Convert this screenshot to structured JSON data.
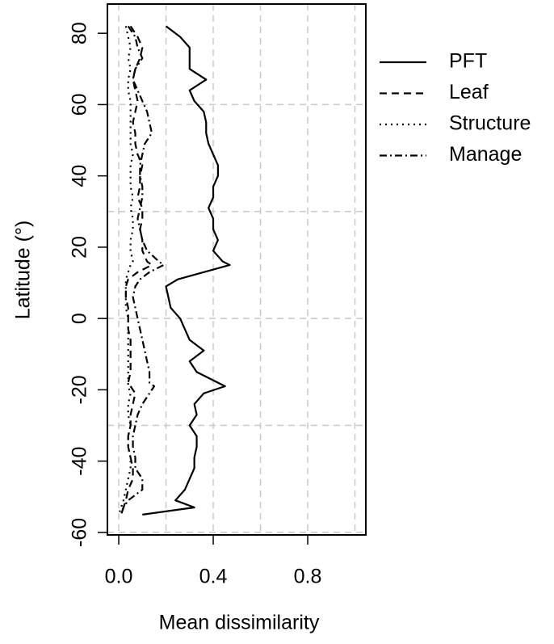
{
  "chart_data": {
    "type": "line",
    "orientation": "horizontal",
    "xlabel": "Mean dissimilarity",
    "ylabel": "Latitude (°)",
    "y": [
      82,
      79,
      76,
      73,
      70,
      67,
      64,
      61,
      58,
      55,
      52,
      49,
      46,
      43,
      40,
      37,
      34,
      31,
      28,
      25,
      22,
      19,
      16,
      15,
      13,
      11,
      9,
      6,
      3,
      0,
      -3,
      -6,
      -9,
      -12,
      -15,
      -18,
      -19,
      -21,
      -24,
      -27,
      -30,
      -33,
      -36,
      -39,
      -42,
      -45,
      -48,
      -51,
      -53,
      -55
    ],
    "series": [
      {
        "name": "PFT",
        "color": "#000000",
        "dash": "none",
        "values": [
          0.2,
          0.26,
          0.3,
          0.3,
          0.3,
          0.37,
          0.3,
          0.32,
          0.36,
          0.37,
          0.37,
          0.38,
          0.4,
          0.42,
          0.42,
          0.4,
          0.4,
          0.38,
          0.4,
          0.4,
          0.42,
          0.4,
          0.44,
          0.47,
          0.36,
          0.25,
          0.2,
          0.21,
          0.22,
          0.26,
          0.28,
          0.3,
          0.36,
          0.3,
          0.33,
          0.42,
          0.45,
          0.36,
          0.32,
          0.33,
          0.3,
          0.33,
          0.33,
          0.32,
          0.32,
          0.3,
          0.28,
          0.24,
          0.32,
          0.1
        ]
      },
      {
        "name": "Leaf",
        "color": "#000000",
        "dash": "9,6",
        "values": [
          0.05,
          0.08,
          0.1,
          0.09,
          0.07,
          0.06,
          0.07,
          0.08,
          0.07,
          0.06,
          0.07,
          0.07,
          0.08,
          0.1,
          0.09,
          0.09,
          0.08,
          0.1,
          0.1,
          0.09,
          0.1,
          0.1,
          0.12,
          0.14,
          0.08,
          0.04,
          0.03,
          0.03,
          0.04,
          0.04,
          0.04,
          0.05,
          0.05,
          0.05,
          0.05,
          0.04,
          0.05,
          0.07,
          0.06,
          0.05,
          0.05,
          0.04,
          0.04,
          0.05,
          0.06,
          0.06,
          0.04,
          0.03,
          0.02,
          0.01
        ]
      },
      {
        "name": "Structure",
        "color": "#000000",
        "dash": "2,5",
        "values": [
          0.03,
          0.04,
          0.05,
          0.04,
          0.05,
          0.04,
          0.04,
          0.05,
          0.05,
          0.05,
          0.05,
          0.05,
          0.06,
          0.05,
          0.05,
          0.05,
          0.06,
          0.05,
          0.06,
          0.06,
          0.05,
          0.05,
          0.06,
          0.05,
          0.04,
          0.03,
          0.03,
          0.03,
          0.03,
          0.04,
          0.04,
          0.04,
          0.04,
          0.04,
          0.04,
          0.04,
          0.04,
          0.05,
          0.04,
          0.04,
          0.05,
          0.04,
          0.04,
          0.05,
          0.05,
          0.04,
          0.03,
          0.02,
          0.01,
          0.0
        ]
      },
      {
        "name": "Manage",
        "color": "#000000",
        "dash": "9,4,2,4",
        "values": [
          0.04,
          0.07,
          0.08,
          0.1,
          0.07,
          0.06,
          0.08,
          0.1,
          0.12,
          0.13,
          0.14,
          0.11,
          0.1,
          0.09,
          0.09,
          0.1,
          0.1,
          0.09,
          0.08,
          0.09,
          0.1,
          0.12,
          0.17,
          0.19,
          0.13,
          0.09,
          0.07,
          0.06,
          0.07,
          0.08,
          0.09,
          0.1,
          0.11,
          0.12,
          0.13,
          0.13,
          0.15,
          0.13,
          0.1,
          0.08,
          0.07,
          0.06,
          0.06,
          0.07,
          0.07,
          0.1,
          0.1,
          0.04,
          0.02,
          0.01
        ]
      }
    ],
    "xlim": [
      -0.048,
      1.046
    ],
    "ylim": [
      -60.7,
      88.2
    ],
    "xticks": [
      {
        "value": 0,
        "label": "0.0"
      },
      {
        "value": 0.4,
        "label": "0.4"
      },
      {
        "value": 0.8,
        "label": "0.8"
      }
    ],
    "yticks": [
      -60,
      -40,
      -20,
      0,
      20,
      40,
      60,
      80
    ],
    "xgrid": [
      0,
      0.2,
      0.4,
      0.6,
      0.8,
      1.0
    ],
    "ygrid": [
      -60,
      -30,
      0,
      30,
      60
    ],
    "grid": true,
    "legend": "right-outside"
  }
}
